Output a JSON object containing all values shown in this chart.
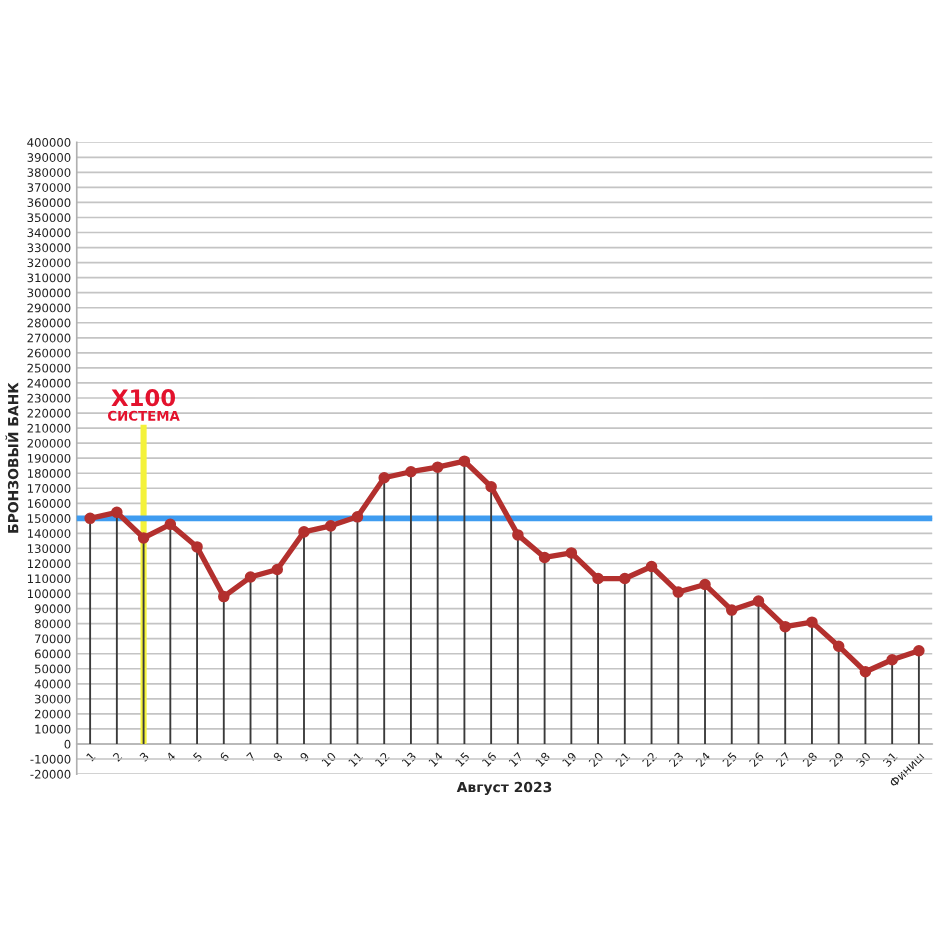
{
  "chart_data": {
    "type": "line",
    "categories": [
      "1",
      "2",
      "3",
      "4",
      "5",
      "6",
      "7",
      "8",
      "9",
      "10",
      "11",
      "12",
      "13",
      "14",
      "15",
      "16",
      "17",
      "18",
      "19",
      "20",
      "21",
      "22",
      "23",
      "24",
      "25",
      "26",
      "27",
      "28",
      "29",
      "30",
      "31",
      "Финиш"
    ],
    "series": [
      {
        "color": "#b3302e",
        "marker": "circle",
        "line_style": "solid",
        "values": [
          150000,
          154000,
          137000,
          146000,
          131000,
          98000,
          111000,
          116000,
          141000,
          145000,
          151000,
          177000,
          181000,
          184000,
          188000,
          171000,
          139000,
          124000,
          127000,
          110000,
          110000,
          118000,
          101000,
          106000,
          89000,
          95000,
          78000,
          81000,
          65000,
          48000,
          56000,
          62000
        ]
      },
      {
        "type": "bar",
        "color": "#3a3a3a",
        "values": [
          150000,
          154000,
          137000,
          146000,
          131000,
          98000,
          111000,
          116000,
          141000,
          145000,
          151000,
          177000,
          181000,
          184000,
          188000,
          171000,
          139000,
          124000,
          127000,
          110000,
          110000,
          118000,
          101000,
          106000,
          89000,
          95000,
          78000,
          81000,
          65000,
          48000,
          56000,
          62000
        ]
      }
    ],
    "ylim": [
      -20000,
      400000
    ],
    "yticks": [
      -20000,
      -10000,
      0,
      10000,
      20000,
      30000,
      40000,
      50000,
      60000,
      70000,
      80000,
      90000,
      100000,
      110000,
      120000,
      130000,
      140000,
      150000,
      160000,
      170000,
      180000,
      190000,
      200000,
      210000,
      220000,
      230000,
      240000,
      250000,
      260000,
      270000,
      280000,
      290000,
      300000,
      310000,
      320000,
      330000,
      340000,
      350000,
      360000,
      370000,
      380000,
      390000,
      400000
    ],
    "xlabel": "Август 2023",
    "ylabel": "БРОНЗОВЫЙ БАНК",
    "grid": "y",
    "ref_lines": [
      {
        "axis": "y",
        "value": 150000,
        "color": "#3f9cf0"
      },
      {
        "axis": "x",
        "value": "3",
        "label": "X100\nСИСТЕМА",
        "color": "#f4f23a"
      }
    ]
  }
}
